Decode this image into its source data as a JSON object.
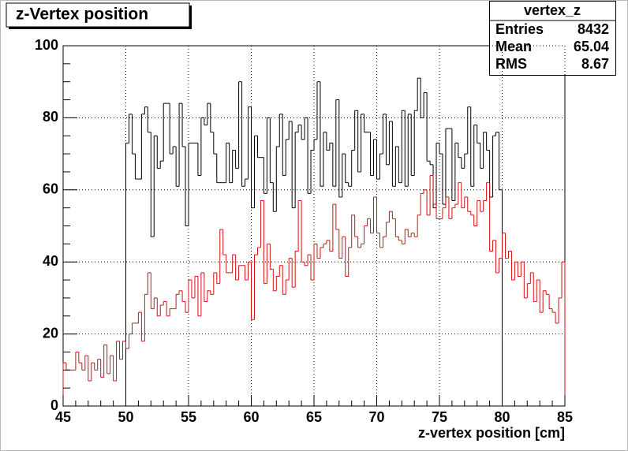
{
  "chart_data": {
    "type": "histogram",
    "title": "z-Vertex position",
    "x_label": "z-vertex position [cm]",
    "xlim": [
      45,
      85
    ],
    "xticks": [
      45,
      50,
      55,
      60,
      65,
      70,
      75,
      80,
      85
    ],
    "ylim": [
      0,
      100
    ],
    "yticks": [
      0,
      20,
      40,
      60,
      80,
      100
    ],
    "grid": true,
    "stats": {
      "title": "vertex_z",
      "rows": [
        {
          "label": "Entries",
          "value": 8432
        },
        {
          "label": "Mean",
          "value": 65.04
        },
        {
          "label": "RMS",
          "value": 8.67
        }
      ]
    },
    "series": [
      {
        "color": "#000000",
        "bins": [
          50,
          50.25,
          50.5,
          50.75,
          51,
          51.25,
          51.5,
          51.75,
          52,
          52.25,
          52.5,
          52.75,
          53,
          53.25,
          53.5,
          53.75,
          54,
          54.25,
          54.5,
          54.75,
          55,
          55.25,
          55.5,
          55.75,
          56,
          56.25,
          56.5,
          56.75,
          57,
          57.25,
          57.5,
          57.75,
          58,
          58.25,
          58.5,
          58.75,
          59,
          59.25,
          59.5,
          59.75,
          60,
          60.25,
          60.5,
          60.75,
          61,
          61.25,
          61.5,
          61.75,
          62,
          62.25,
          62.5,
          62.75,
          63,
          63.25,
          63.5,
          63.75,
          64,
          64.25,
          64.5,
          64.75,
          65,
          65.25,
          65.5,
          65.75,
          66,
          66.25,
          66.5,
          66.75,
          67,
          67.25,
          67.5,
          67.75,
          68,
          68.25,
          68.5,
          68.75,
          69,
          69.25,
          69.5,
          69.75,
          70,
          70.25,
          70.5,
          70.75,
          71,
          71.25,
          71.5,
          71.75,
          72,
          72.25,
          72.5,
          72.75,
          73,
          73.25,
          73.5,
          73.75,
          74,
          74.25,
          74.5,
          74.75,
          75,
          75.25,
          75.5,
          75.75,
          76,
          76.25,
          76.5,
          76.75,
          77,
          77.25,
          77.5,
          77.75,
          78,
          78.25,
          78.5,
          78.75,
          79,
          79.25,
          79.5,
          79.75,
          80
        ],
        "values": [
          73,
          81,
          70,
          63,
          63,
          81,
          83,
          76,
          47,
          75,
          66,
          68,
          84,
          84,
          70,
          72,
          61,
          84,
          72,
          50,
          73,
          73,
          73,
          64,
          80,
          78,
          84,
          76,
          70,
          62,
          62,
          62,
          73,
          62,
          71,
          66,
          90,
          61,
          63,
          83,
          55,
          75,
          69,
          69,
          59,
          80,
          62,
          54,
          72,
          81,
          64,
          74,
          79,
          55,
          76,
          78,
          74,
          80,
          59,
          71,
          74,
          90,
          61,
          76,
          71,
          73,
          61,
          85,
          58,
          70,
          62,
          61,
          71,
          82,
          65,
          81,
          76,
          76,
          64,
          74,
          63,
          70,
          81,
          67,
          79,
          61,
          72,
          62,
          82,
          61,
          81,
          64,
          82,
          91,
          80,
          87,
          68,
          67,
          55,
          73,
          70,
          56,
          77,
          77,
          57,
          73,
          69,
          66,
          70,
          83,
          61,
          78,
          73,
          66,
          76,
          71,
          58,
          75,
          76,
          60
        ]
      },
      {
        "color": "#d01010",
        "bins": [
          45,
          45.25,
          45.5,
          45.75,
          46,
          46.25,
          46.5,
          46.75,
          47,
          47.25,
          47.5,
          47.75,
          48,
          48.25,
          48.5,
          48.75,
          49,
          49.25,
          49.5,
          49.75,
          50,
          50.25,
          50.5,
          50.75,
          51,
          51.25,
          51.5,
          51.75,
          52,
          52.25,
          52.5,
          52.75,
          53,
          53.25,
          53.5,
          53.75,
          54,
          54.25,
          54.5,
          54.75,
          55,
          55.25,
          55.5,
          55.75,
          56,
          56.25,
          56.5,
          56.75,
          57,
          57.25,
          57.5,
          57.75,
          58,
          58.25,
          58.5,
          58.75,
          59,
          59.25,
          59.5,
          59.75,
          60,
          60.25,
          60.5,
          60.75,
          61,
          61.25,
          61.5,
          61.75,
          62,
          62.25,
          62.5,
          62.75,
          63,
          63.25,
          63.5,
          63.75,
          64,
          64.25,
          64.5,
          64.75,
          65,
          65.25,
          65.5,
          65.75,
          66,
          66.25,
          66.5,
          66.75,
          67,
          67.25,
          67.5,
          67.75,
          68,
          68.25,
          68.5,
          68.75,
          69,
          69.25,
          69.5,
          69.75,
          70,
          70.25,
          70.5,
          70.75,
          71,
          71.25,
          71.5,
          71.75,
          72,
          72.25,
          72.5,
          72.75,
          73,
          73.25,
          73.5,
          73.75,
          74,
          74.25,
          74.5,
          74.75,
          75,
          75.25,
          75.5,
          75.75,
          76,
          76.25,
          76.5,
          76.75,
          77,
          77.25,
          77.5,
          77.75,
          78,
          78.25,
          78.5,
          78.75,
          79,
          79.25,
          79.5,
          79.75,
          80,
          80.25,
          80.5,
          80.75,
          81,
          81.25,
          81.5,
          81.75,
          82,
          82.25,
          82.5,
          82.75,
          83,
          83.25,
          83.5,
          83.75,
          84,
          84.25,
          84.5,
          84.75,
          85
        ],
        "values": [
          12,
          10,
          10,
          10,
          15,
          12,
          10,
          14,
          7,
          12,
          10,
          13,
          8,
          17,
          9,
          14,
          7,
          18,
          13,
          18,
          16,
          20,
          23,
          23,
          26,
          18,
          31,
          37,
          27,
          30,
          25,
          28,
          29,
          25,
          27,
          27,
          31,
          32,
          29,
          26,
          35,
          30,
          36,
          25,
          37,
          29,
          32,
          31,
          37,
          34,
          49,
          42,
          37,
          37,
          42,
          35,
          39,
          39,
          35,
          40,
          24,
          42,
          44,
          57,
          34,
          45,
          38,
          32,
          36,
          39,
          31,
          35,
          41,
          33,
          43,
          57,
          40,
          39,
          42,
          35,
          45,
          41,
          44,
          45,
          46,
          43,
          56,
          49,
          41,
          47,
          36,
          44,
          53,
          47,
          44,
          45,
          50,
          52,
          48,
          58,
          48,
          44,
          47,
          51,
          54,
          52,
          47,
          46,
          45,
          49,
          47,
          48,
          47,
          53,
          59,
          60,
          53,
          64,
          56,
          52,
          52,
          55,
          58,
          52,
          55,
          56,
          62,
          55,
          58,
          54,
          53,
          50,
          57,
          54,
          57,
          62,
          43,
          46,
          37,
          41,
          48,
          41,
          43,
          35,
          40,
          36,
          40,
          30,
          34,
          37,
          29,
          35,
          26,
          32,
          31,
          27,
          26,
          23,
          30,
          40
        ]
      }
    ]
  }
}
